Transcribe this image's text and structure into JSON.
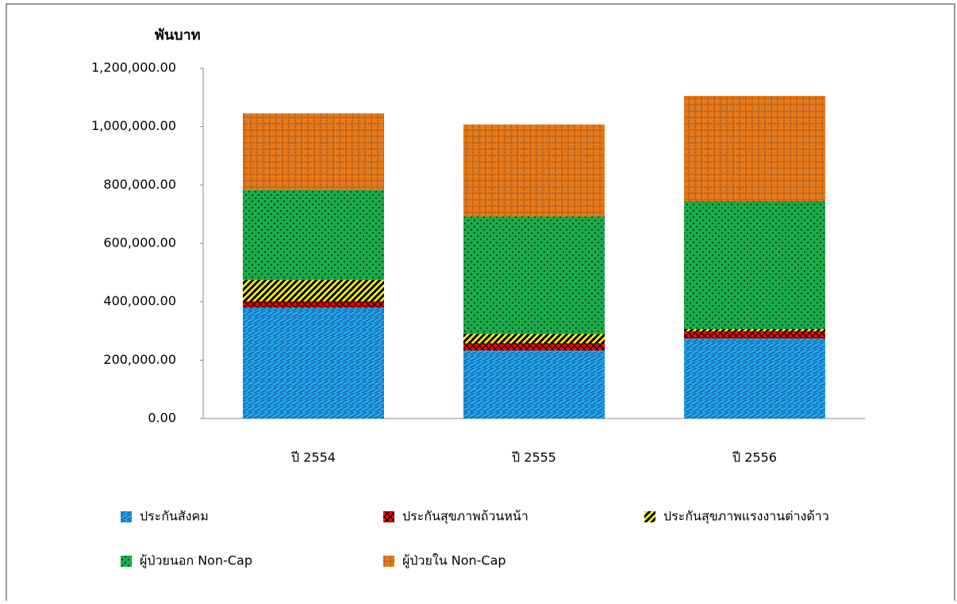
{
  "chart_data": {
    "type": "stacked_bar",
    "y_axis_title": "พันบาท",
    "categories": [
      "ปี 2554",
      "ปี 2555",
      "ปี 2556"
    ],
    "series": [
      {
        "name": "ประกันสังคม",
        "color": "#1fa6e8",
        "values": [
          380000,
          233000,
          274000
        ]
      },
      {
        "name": "ประกันสุขภาพถ้วนหน้า",
        "color": "#ff0000",
        "values": [
          22000,
          25000,
          25000
        ]
      },
      {
        "name": "ประกันสุขภาพแรงงานต่างด้าว",
        "color": "#ffff00",
        "values": [
          73000,
          32000,
          8000
        ]
      },
      {
        "name": "ผู้ป่วยนอก Non-Cap",
        "color": "#1aab4b",
        "values": [
          307000,
          402000,
          437000
        ]
      },
      {
        "name": "ผู้ป่วยใน Non-Cap",
        "color": "#e87818",
        "values": [
          263000,
          315000,
          361000
        ]
      }
    ],
    "ylim": [
      0,
      1200000
    ],
    "yticks": [
      {
        "value": 0,
        "label": "0.00"
      },
      {
        "value": 200000,
        "label": "200,000.00"
      },
      {
        "value": 400000,
        "label": "400,000.00"
      },
      {
        "value": 600000,
        "label": "600,000.00"
      },
      {
        "value": 800000,
        "label": "800,000.00"
      },
      {
        "value": 1000000,
        "label": "1,000,000.00"
      },
      {
        "value": 1200000,
        "label": "1,200,000.00"
      }
    ]
  }
}
